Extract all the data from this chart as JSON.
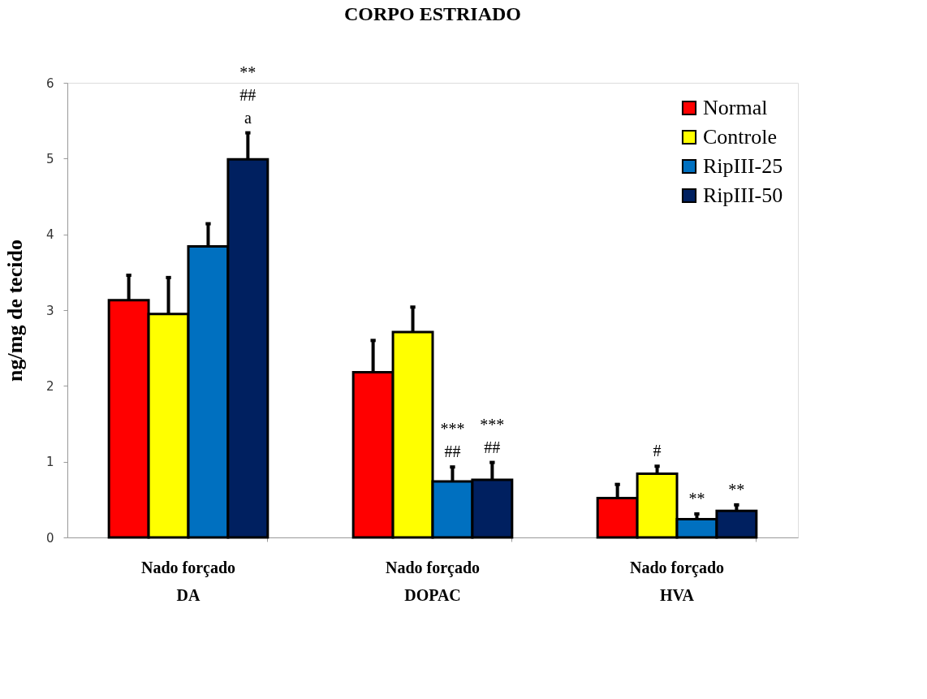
{
  "chart_data": {
    "type": "bar",
    "title": "CORPO ESTRIADO",
    "ylabel": "ng/mg de tecido",
    "categories": [
      "Nado forçado\nDA",
      "Nado forçado\nDOPAC",
      "Nado forçado\nHVA"
    ],
    "series": [
      {
        "name": "Normal",
        "color": "#ff0000",
        "values": [
          3.13,
          2.18,
          0.52
        ],
        "errors": [
          0.33,
          0.42,
          0.18
        ]
      },
      {
        "name": "Controle",
        "color": "#ffff00",
        "values": [
          2.95,
          2.71,
          0.84
        ],
        "errors": [
          0.48,
          0.33,
          0.1
        ],
        "value_labels": [
          null,
          null,
          "#"
        ]
      },
      {
        "name": "RipIII-25",
        "color": "#0070c0",
        "values": [
          3.84,
          0.74,
          0.24
        ],
        "errors": [
          0.3,
          0.19,
          0.07
        ],
        "value_labels": [
          null,
          "***\n##",
          "**"
        ]
      },
      {
        "name": "RipIII-50",
        "color": "#002060",
        "values": [
          4.99,
          0.76,
          0.35
        ],
        "errors": [
          0.35,
          0.23,
          0.08
        ],
        "value_labels": [
          "**\n##\na",
          "***\n##",
          "**"
        ]
      }
    ],
    "ylim": [
      0,
      6
    ],
    "yticks": [
      0,
      1,
      2,
      3,
      4,
      5,
      6
    ],
    "grid": false,
    "legend": "top right"
  }
}
